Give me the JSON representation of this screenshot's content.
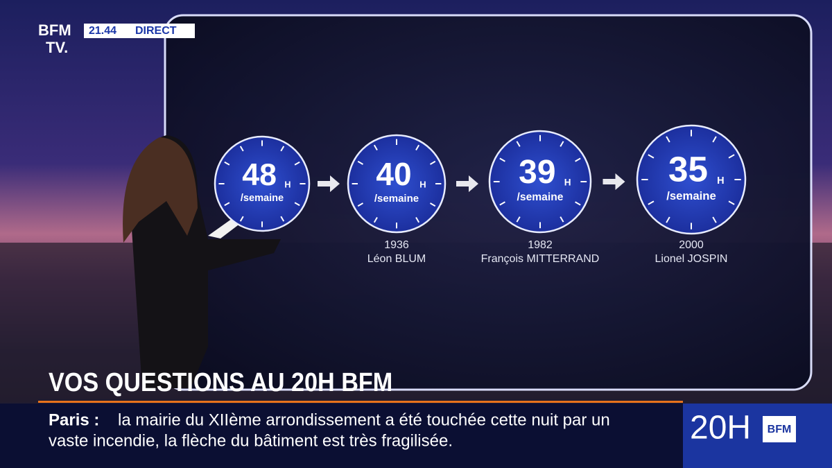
{
  "header": {
    "logo_top": "BFM",
    "logo_bottom": "TV.",
    "time": "21.44",
    "status": "DIRECT"
  },
  "clocks": [
    {
      "hours": 48,
      "unit": "H",
      "per": "/semaine"
    },
    {
      "hours": 40,
      "unit": "H",
      "per": "/semaine",
      "year": 1936,
      "name": "Léon BLUM"
    },
    {
      "hours": 39,
      "unit": "H",
      "per": "/semaine",
      "year": 1982,
      "name": "François MITTERRAND"
    },
    {
      "hours": 35,
      "unit": "H",
      "per": "/semaine",
      "year": 2000,
      "name": "Lionel JOSPIN"
    }
  ],
  "headline": "VOS QUESTIONS AU 20H BFM",
  "ticker": {
    "place": "Paris :",
    "line1": "la mairie du XIIème arrondissement a été touchée cette nuit par un",
    "line2": "vaste incendie, la flèche du bâtiment est très fragilisée."
  },
  "program": {
    "show": "20H",
    "brand": "BFM"
  }
}
